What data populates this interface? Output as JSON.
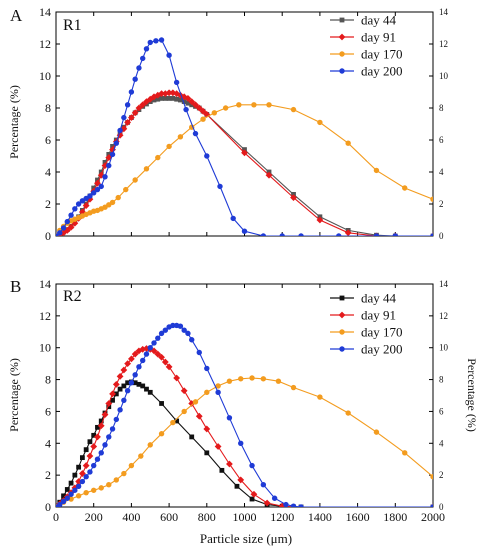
{
  "chart_data": [
    {
      "type": "line",
      "panel_letter": "A",
      "title": "R1",
      "xlabel": "",
      "ylabel": "Percentage (%)",
      "ylabel_right": "",
      "xlim": [
        0,
        2000
      ],
      "ylim": [
        0,
        14
      ],
      "x_ticks": [
        0,
        200,
        400,
        600,
        800,
        1000,
        1200,
        1400,
        1600,
        1800,
        2000
      ],
      "y_ticks": [
        0,
        2,
        4,
        6,
        8,
        10,
        12,
        14
      ],
      "show_x_tick_labels": false,
      "right_axis_ticks": [
        0,
        2,
        4,
        6,
        8,
        10,
        12,
        14
      ],
      "grid": false,
      "legend_position": "top-right",
      "series": [
        {
          "name": "day 44",
          "color": "#555555",
          "marker": "square",
          "x": [
            0,
            20,
            40,
            60,
            80,
            100,
            120,
            140,
            160,
            180,
            200,
            220,
            240,
            260,
            280,
            300,
            320,
            340,
            360,
            380,
            400,
            420,
            440,
            460,
            480,
            500,
            520,
            540,
            560,
            580,
            600,
            620,
            640,
            660,
            680,
            700,
            720,
            740,
            760,
            780,
            800,
            1000,
            1130,
            1260,
            1400,
            1550,
            1700,
            1800,
            2000
          ],
          "y": [
            0,
            0.1,
            0.25,
            0.4,
            0.6,
            0.9,
            1.2,
            1.6,
            2.0,
            2.5,
            3.0,
            3.5,
            4.0,
            4.6,
            5.1,
            5.6,
            6.0,
            6.4,
            6.8,
            7.1,
            7.4,
            7.7,
            7.9,
            8.1,
            8.25,
            8.4,
            8.5,
            8.55,
            8.6,
            8.6,
            8.6,
            8.6,
            8.55,
            8.5,
            8.4,
            8.3,
            8.2,
            8.1,
            8.0,
            7.8,
            7.6,
            5.4,
            4.0,
            2.6,
            1.2,
            0.35,
            0.05,
            0,
            0
          ]
        },
        {
          "name": "day 91",
          "color": "#e41a1c",
          "marker": "diamond",
          "x": [
            0,
            20,
            40,
            60,
            80,
            100,
            120,
            140,
            160,
            180,
            200,
            220,
            240,
            260,
            280,
            300,
            320,
            340,
            360,
            380,
            400,
            420,
            440,
            460,
            480,
            500,
            520,
            540,
            560,
            580,
            600,
            620,
            640,
            660,
            680,
            700,
            720,
            740,
            760,
            780,
            800,
            1000,
            1130,
            1260,
            1400,
            1550,
            1700,
            1800,
            2000
          ],
          "y": [
            0,
            0.1,
            0.2,
            0.35,
            0.55,
            0.8,
            1.1,
            1.5,
            1.9,
            2.3,
            2.8,
            3.3,
            3.8,
            4.4,
            4.9,
            5.4,
            5.9,
            6.3,
            6.7,
            7.1,
            7.4,
            7.7,
            8.0,
            8.2,
            8.4,
            8.55,
            8.7,
            8.8,
            8.9,
            8.9,
            8.95,
            8.95,
            8.9,
            8.8,
            8.7,
            8.6,
            8.4,
            8.2,
            8.0,
            7.8,
            7.6,
            5.2,
            3.8,
            2.4,
            1.0,
            0.2,
            0,
            0,
            0
          ]
        },
        {
          "name": "day 170",
          "color": "#f39c1f",
          "marker": "circle",
          "x": [
            0,
            20,
            40,
            60,
            80,
            100,
            120,
            140,
            160,
            180,
            200,
            220,
            240,
            260,
            280,
            300,
            330,
            370,
            420,
            480,
            540,
            600,
            660,
            720,
            780,
            840,
            900,
            970,
            1050,
            1130,
            1260,
            1400,
            1550,
            1700,
            1850,
            2000
          ],
          "y": [
            0,
            0.35,
            0.6,
            0.8,
            0.95,
            1.05,
            1.15,
            1.25,
            1.35,
            1.45,
            1.55,
            1.6,
            1.7,
            1.8,
            1.95,
            2.1,
            2.4,
            2.9,
            3.5,
            4.2,
            4.9,
            5.6,
            6.2,
            6.8,
            7.3,
            7.7,
            8.0,
            8.2,
            8.2,
            8.2,
            7.9,
            7.1,
            5.8,
            4.1,
            3.0,
            2.3
          ]
        },
        {
          "name": "day 200",
          "color": "#1f3bd6",
          "marker": "circle",
          "x": [
            0,
            20,
            40,
            60,
            80,
            100,
            120,
            140,
            160,
            180,
            200,
            220,
            240,
            260,
            280,
            300,
            320,
            340,
            360,
            380,
            400,
            420,
            440,
            460,
            480,
            500,
            530,
            560,
            600,
            640,
            690,
            740,
            800,
            870,
            940,
            1000,
            1100,
            1200,
            1300,
            1500,
            1700,
            1800,
            2000
          ],
          "y": [
            0,
            0.2,
            0.5,
            0.9,
            1.3,
            1.7,
            2.0,
            2.2,
            2.35,
            2.5,
            2.7,
            2.9,
            3.1,
            3.7,
            4.4,
            5.1,
            5.8,
            6.6,
            7.4,
            8.2,
            9.0,
            9.8,
            10.5,
            11.1,
            11.7,
            12.1,
            12.2,
            12.25,
            11.3,
            9.6,
            7.9,
            6.4,
            5.0,
            3.1,
            1.1,
            0.3,
            0,
            0,
            0,
            0,
            0,
            0,
            0
          ]
        }
      ]
    },
    {
      "type": "line",
      "panel_letter": "B",
      "title": "R2",
      "xlabel": "Particle size (μm)",
      "ylabel": "Percentage (%)",
      "ylabel_right": "Percentage (%)",
      "xlim": [
        0,
        2000
      ],
      "ylim": [
        0,
        14
      ],
      "x_ticks": [
        0,
        200,
        400,
        600,
        800,
        1000,
        1200,
        1400,
        1600,
        1800,
        2000
      ],
      "y_ticks": [
        0,
        2,
        4,
        6,
        8,
        10,
        12,
        14
      ],
      "show_x_tick_labels": true,
      "right_axis_ticks": [
        0,
        2,
        4,
        6,
        8,
        10,
        12,
        14
      ],
      "grid": false,
      "legend_position": "top-right",
      "series": [
        {
          "name": "day 44",
          "color": "#111111",
          "marker": "square",
          "x": [
            0,
            20,
            40,
            60,
            80,
            100,
            120,
            140,
            160,
            180,
            200,
            220,
            240,
            260,
            280,
            300,
            320,
            340,
            360,
            380,
            400,
            420,
            440,
            460,
            480,
            500,
            560,
            640,
            720,
            800,
            880,
            960,
            1040,
            1120,
            1200,
            1260,
            1300,
            2000
          ],
          "y": [
            0,
            0.3,
            0.7,
            1.1,
            1.5,
            2.0,
            2.5,
            3.1,
            3.6,
            4.1,
            4.5,
            5.0,
            5.4,
            5.9,
            6.3,
            6.7,
            7.1,
            7.4,
            7.6,
            7.8,
            7.85,
            7.8,
            7.7,
            7.6,
            7.4,
            7.2,
            6.5,
            5.4,
            4.4,
            3.4,
            2.3,
            1.3,
            0.5,
            0.15,
            0.05,
            0,
            0,
            0
          ]
        },
        {
          "name": "day 91",
          "color": "#e41a1c",
          "marker": "diamond",
          "x": [
            0,
            20,
            40,
            60,
            80,
            100,
            120,
            140,
            160,
            180,
            200,
            220,
            240,
            260,
            280,
            300,
            320,
            340,
            360,
            380,
            400,
            420,
            440,
            460,
            480,
            500,
            520,
            540,
            560,
            580,
            600,
            640,
            680,
            720,
            760,
            800,
            860,
            920,
            980,
            1050,
            1120,
            1200,
            1260,
            2000
          ],
          "y": [
            0,
            0.2,
            0.4,
            0.65,
            0.9,
            1.2,
            1.6,
            2.1,
            2.6,
            3.2,
            3.8,
            4.4,
            5.1,
            5.8,
            6.5,
            7.1,
            7.7,
            8.2,
            8.6,
            9.0,
            9.3,
            9.6,
            9.8,
            9.9,
            9.95,
            9.9,
            9.8,
            9.6,
            9.4,
            9.1,
            8.8,
            8.1,
            7.3,
            6.5,
            5.7,
            4.9,
            3.8,
            2.7,
            1.7,
            0.8,
            0.25,
            0.05,
            0,
            0
          ]
        },
        {
          "name": "day 170",
          "color": "#f39c1f",
          "marker": "circle",
          "x": [
            0,
            40,
            80,
            120,
            160,
            200,
            240,
            280,
            320,
            360,
            400,
            450,
            500,
            560,
            620,
            680,
            740,
            800,
            860,
            920,
            980,
            1040,
            1100,
            1180,
            1260,
            1400,
            1550,
            1700,
            1850,
            2000
          ],
          "y": [
            0,
            0.3,
            0.5,
            0.7,
            0.9,
            1.05,
            1.2,
            1.4,
            1.7,
            2.1,
            2.6,
            3.2,
            3.9,
            4.6,
            5.3,
            6.0,
            6.6,
            7.2,
            7.6,
            7.9,
            8.05,
            8.1,
            8.05,
            7.9,
            7.5,
            6.9,
            5.9,
            4.7,
            3.4,
            1.9
          ]
        },
        {
          "name": "day 200",
          "color": "#1f3bd6",
          "marker": "circle",
          "x": [
            0,
            20,
            40,
            60,
            80,
            100,
            120,
            140,
            160,
            180,
            200,
            220,
            240,
            260,
            280,
            300,
            320,
            340,
            360,
            380,
            400,
            420,
            440,
            460,
            480,
            500,
            520,
            540,
            560,
            580,
            600,
            620,
            640,
            660,
            680,
            700,
            720,
            760,
            800,
            860,
            920,
            980,
            1040,
            1100,
            1160,
            1220,
            1260,
            1300,
            2000
          ],
          "y": [
            0,
            0.15,
            0.35,
            0.55,
            0.8,
            1.05,
            1.3,
            1.6,
            1.9,
            2.2,
            2.6,
            3.0,
            3.4,
            3.9,
            4.4,
            4.9,
            5.5,
            6.1,
            6.7,
            7.3,
            7.8,
            8.3,
            8.8,
            9.2,
            9.6,
            10.0,
            10.3,
            10.6,
            10.9,
            11.1,
            11.3,
            11.4,
            11.4,
            11.35,
            11.1,
            10.9,
            10.5,
            9.7,
            8.7,
            7.2,
            5.6,
            4.0,
            2.6,
            1.4,
            0.55,
            0.15,
            0.05,
            0,
            0
          ]
        }
      ]
    }
  ]
}
